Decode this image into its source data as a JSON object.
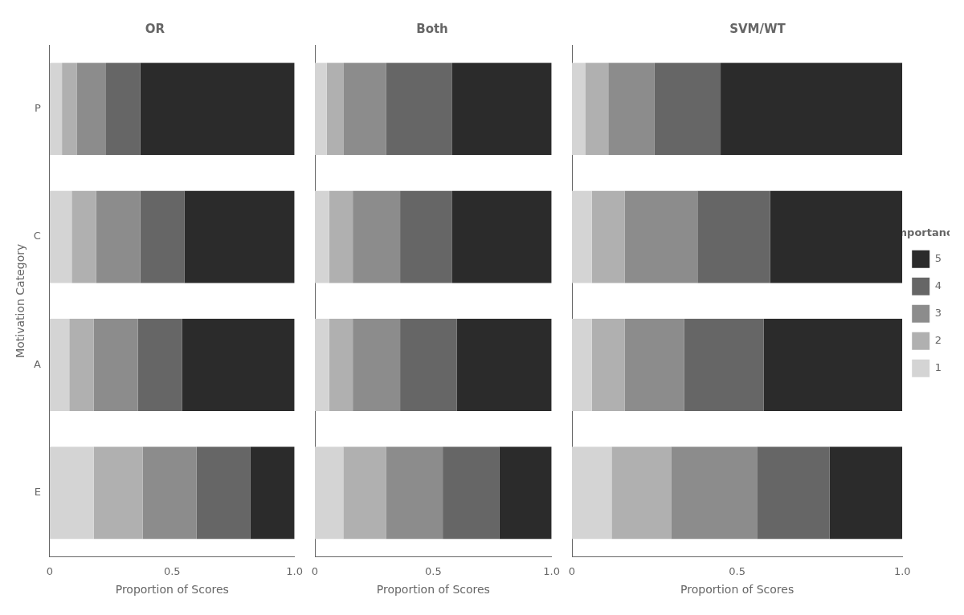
{
  "chart_data": [
    {
      "type": "bar",
      "orientation": "horizontal",
      "stacked": true,
      "title": "OR",
      "xlabel": "Proportion of Scores",
      "ylabel": "Motivation Category",
      "categories": [
        "P",
        "C",
        "A",
        "E"
      ],
      "series": [
        {
          "name": "1",
          "color": "#d4d4d4",
          "values": [
            0.05,
            0.09,
            0.08,
            0.18
          ]
        },
        {
          "name": "2",
          "color": "#b0b0b0",
          "values": [
            0.06,
            0.1,
            0.1,
            0.2
          ]
        },
        {
          "name": "3",
          "color": "#8c8c8c",
          "values": [
            0.12,
            0.18,
            0.18,
            0.22
          ]
        },
        {
          "name": "4",
          "color": "#666666",
          "values": [
            0.14,
            0.18,
            0.18,
            0.22
          ]
        },
        {
          "name": "5",
          "color": "#2b2b2b",
          "values": [
            0.63,
            0.45,
            0.46,
            0.18
          ]
        }
      ],
      "xlim": [
        0,
        1
      ],
      "xticks": [
        0,
        0.5,
        {
          "value": 1,
          "label": "1.0"
        }
      ],
      "grid": false
    },
    {
      "type": "bar",
      "orientation": "horizontal",
      "stacked": true,
      "title": "Both",
      "xlabel": "Proportion of Scores",
      "categories": [
        "P",
        "C",
        "A",
        "E"
      ],
      "series": [
        {
          "name": "1",
          "color": "#d4d4d4",
          "values": [
            0.05,
            0.06,
            0.06,
            0.12
          ]
        },
        {
          "name": "2",
          "color": "#b0b0b0",
          "values": [
            0.07,
            0.1,
            0.1,
            0.18
          ]
        },
        {
          "name": "3",
          "color": "#8c8c8c",
          "values": [
            0.18,
            0.2,
            0.2,
            0.24
          ]
        },
        {
          "name": "4",
          "color": "#666666",
          "values": [
            0.28,
            0.22,
            0.24,
            0.24
          ]
        },
        {
          "name": "5",
          "color": "#2b2b2b",
          "values": [
            0.42,
            0.42,
            0.4,
            0.22
          ]
        }
      ],
      "xlim": [
        0,
        1
      ],
      "xticks": [
        0,
        0.5,
        {
          "value": 1,
          "label": "1.0"
        }
      ],
      "grid": false,
      "tick_labels": "x"
    },
    {
      "type": "bar",
      "orientation": "horizontal",
      "stacked": true,
      "title": "SVM/WT",
      "xlabel": "Proportion of Scores",
      "categories": [
        "P",
        "C",
        "A",
        "E"
      ],
      "series": [
        {
          "name": "1",
          "color": "#d4d4d4",
          "values": [
            0.04,
            0.06,
            0.06,
            0.12
          ]
        },
        {
          "name": "2",
          "color": "#b0b0b0",
          "values": [
            0.07,
            0.1,
            0.1,
            0.18
          ]
        },
        {
          "name": "3",
          "color": "#8c8c8c",
          "values": [
            0.14,
            0.22,
            0.18,
            0.26
          ]
        },
        {
          "name": "4",
          "color": "#666666",
          "values": [
            0.2,
            0.22,
            0.24,
            0.22
          ]
        },
        {
          "name": "5",
          "color": "#2b2b2b",
          "values": [
            0.55,
            0.4,
            0.42,
            0.22
          ]
        }
      ],
      "xlim": [
        0,
        1
      ],
      "xticks": [
        0,
        0.5,
        {
          "value": 1,
          "label": "1.0"
        }
      ],
      "grid": false,
      "tick_labels": "x",
      "legend": "right",
      "legend_title": "Importance"
    }
  ]
}
